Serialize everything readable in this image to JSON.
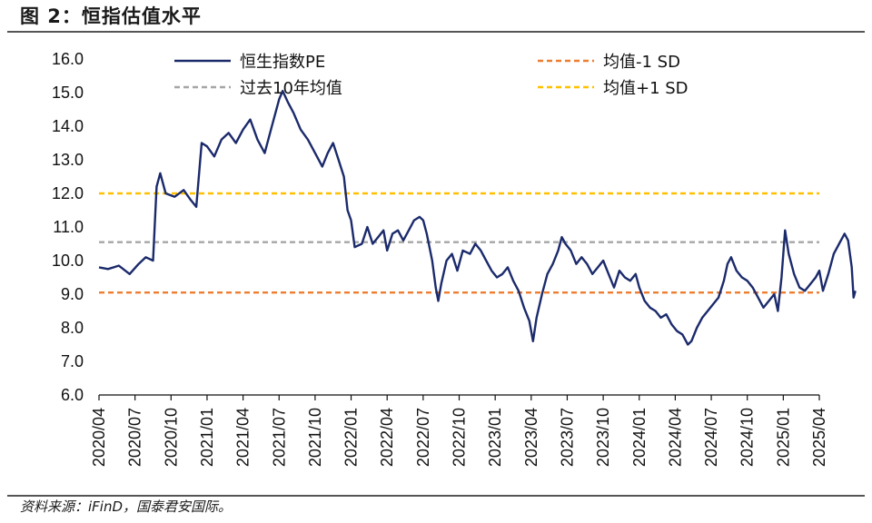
{
  "header": {
    "title": "图 2：恒指估值水平"
  },
  "footer": {
    "source": "资料来源：iFinD，国泰君安国际。"
  },
  "chart_data": {
    "type": "line",
    "title": "图 2：恒指估值水平",
    "xlabel": "",
    "ylabel": "",
    "ylim": [
      6.0,
      16.0
    ],
    "yticks": [
      "16.0",
      "15.0",
      "14.0",
      "13.0",
      "12.0",
      "11.0",
      "10.0",
      "9.0",
      "8.0",
      "7.0",
      "6.0"
    ],
    "xticks": [
      "2020/04",
      "2020/07",
      "2020/10",
      "2021/01",
      "2021/04",
      "2021/07",
      "2021/10",
      "2022/01",
      "2022/04",
      "2022/07",
      "2022/10",
      "2023/01",
      "2023/04",
      "2023/07",
      "2023/10",
      "2024/01",
      "2024/04",
      "2024/07",
      "2024/10",
      "2025/01",
      "2025/04"
    ],
    "grid": false,
    "legend": [
      {
        "name": "恒生指数PE",
        "style": "solid",
        "color": "#1b2a6b"
      },
      {
        "name": "均值-1 SD",
        "style": "dashed",
        "color": "#ee7d31"
      },
      {
        "name": "过去10年均值",
        "style": "dashed",
        "color": "#a6a6a6"
      },
      {
        "name": "均值+1 SD",
        "style": "dashed",
        "color": "#ffc000"
      }
    ],
    "reference_lines": {
      "mean_minus_1sd": 9.05,
      "mean_10y": 10.55,
      "mean_plus_1sd": 12.0
    },
    "series": [
      {
        "name": "恒生指数PE",
        "color": "#1b2a6b",
        "points": [
          [
            0.0,
            9.8
          ],
          [
            0.25,
            9.75
          ],
          [
            0.55,
            9.85
          ],
          [
            0.85,
            9.6
          ],
          [
            1.1,
            9.9
          ],
          [
            1.3,
            10.1
          ],
          [
            1.5,
            10.0
          ],
          [
            1.6,
            12.2
          ],
          [
            1.7,
            12.6
          ],
          [
            1.85,
            12.0
          ],
          [
            2.1,
            11.9
          ],
          [
            2.35,
            12.1
          ],
          [
            2.55,
            11.8
          ],
          [
            2.7,
            11.6
          ],
          [
            2.85,
            13.5
          ],
          [
            3.0,
            13.4
          ],
          [
            3.2,
            13.1
          ],
          [
            3.4,
            13.6
          ],
          [
            3.6,
            13.8
          ],
          [
            3.8,
            13.5
          ],
          [
            4.0,
            13.9
          ],
          [
            4.2,
            14.2
          ],
          [
            4.4,
            13.6
          ],
          [
            4.6,
            13.2
          ],
          [
            4.8,
            14.0
          ],
          [
            5.0,
            14.8
          ],
          [
            5.1,
            15.05
          ],
          [
            5.25,
            14.7
          ],
          [
            5.4,
            14.4
          ],
          [
            5.6,
            13.9
          ],
          [
            5.8,
            13.6
          ],
          [
            6.0,
            13.2
          ],
          [
            6.2,
            12.8
          ],
          [
            6.35,
            13.2
          ],
          [
            6.5,
            13.5
          ],
          [
            6.65,
            13.0
          ],
          [
            6.8,
            12.5
          ],
          [
            6.9,
            11.5
          ],
          [
            7.0,
            11.2
          ],
          [
            7.1,
            10.4
          ],
          [
            7.3,
            10.5
          ],
          [
            7.45,
            11.0
          ],
          [
            7.6,
            10.5
          ],
          [
            7.75,
            10.7
          ],
          [
            7.9,
            10.9
          ],
          [
            8.0,
            10.3
          ],
          [
            8.15,
            10.8
          ],
          [
            8.3,
            10.9
          ],
          [
            8.45,
            10.6
          ],
          [
            8.6,
            10.9
          ],
          [
            8.75,
            11.2
          ],
          [
            8.9,
            11.3
          ],
          [
            9.0,
            11.2
          ],
          [
            9.1,
            10.8
          ],
          [
            9.25,
            10.0
          ],
          [
            9.35,
            9.2
          ],
          [
            9.42,
            8.8
          ],
          [
            9.5,
            9.3
          ],
          [
            9.65,
            10.0
          ],
          [
            9.8,
            10.2
          ],
          [
            9.95,
            9.7
          ],
          [
            10.1,
            10.3
          ],
          [
            10.3,
            10.2
          ],
          [
            10.45,
            10.5
          ],
          [
            10.6,
            10.3
          ],
          [
            10.75,
            10.0
          ],
          [
            10.9,
            9.7
          ],
          [
            11.05,
            9.5
          ],
          [
            11.2,
            9.6
          ],
          [
            11.35,
            9.8
          ],
          [
            11.5,
            9.4
          ],
          [
            11.65,
            9.1
          ],
          [
            11.8,
            8.6
          ],
          [
            11.95,
            8.2
          ],
          [
            12.05,
            7.6
          ],
          [
            12.15,
            8.3
          ],
          [
            12.3,
            9.0
          ],
          [
            12.45,
            9.6
          ],
          [
            12.6,
            9.9
          ],
          [
            12.75,
            10.3
          ],
          [
            12.85,
            10.7
          ],
          [
            12.95,
            10.5
          ],
          [
            13.1,
            10.3
          ],
          [
            13.25,
            9.9
          ],
          [
            13.4,
            10.1
          ],
          [
            13.55,
            9.9
          ],
          [
            13.7,
            9.6
          ],
          [
            13.85,
            9.8
          ],
          [
            14.0,
            10.0
          ],
          [
            14.15,
            9.6
          ],
          [
            14.3,
            9.2
          ],
          [
            14.45,
            9.7
          ],
          [
            14.6,
            9.5
          ],
          [
            14.75,
            9.4
          ],
          [
            14.9,
            9.6
          ],
          [
            15.0,
            9.2
          ],
          [
            15.15,
            8.8
          ],
          [
            15.3,
            8.6
          ],
          [
            15.45,
            8.5
          ],
          [
            15.6,
            8.3
          ],
          [
            15.75,
            8.4
          ],
          [
            15.9,
            8.1
          ],
          [
            16.05,
            7.9
          ],
          [
            16.2,
            7.8
          ],
          [
            16.35,
            7.5
          ],
          [
            16.45,
            7.6
          ],
          [
            16.6,
            8.0
          ],
          [
            16.75,
            8.3
          ],
          [
            16.9,
            8.5
          ],
          [
            17.05,
            8.7
          ],
          [
            17.2,
            8.9
          ],
          [
            17.35,
            9.4
          ],
          [
            17.45,
            9.9
          ],
          [
            17.55,
            10.1
          ],
          [
            17.7,
            9.7
          ],
          [
            17.85,
            9.5
          ],
          [
            18.0,
            9.4
          ],
          [
            18.15,
            9.2
          ],
          [
            18.3,
            8.9
          ],
          [
            18.45,
            8.6
          ],
          [
            18.6,
            8.8
          ],
          [
            18.75,
            9.0
          ],
          [
            18.85,
            8.5
          ],
          [
            18.95,
            9.5
          ],
          [
            19.05,
            10.9
          ],
          [
            19.15,
            10.2
          ],
          [
            19.3,
            9.6
          ],
          [
            19.45,
            9.2
          ],
          [
            19.6,
            9.1
          ],
          [
            19.75,
            9.3
          ],
          [
            19.9,
            9.5
          ],
          [
            20.0,
            9.7
          ],
          [
            20.1,
            9.1
          ],
          [
            20.25,
            9.6
          ],
          [
            20.4,
            10.2
          ],
          [
            20.55,
            10.5
          ],
          [
            20.7,
            10.8
          ],
          [
            20.8,
            10.6
          ],
          [
            20.9,
            9.8
          ],
          [
            20.95,
            8.9
          ],
          [
            21.0,
            9.1
          ]
        ]
      }
    ]
  }
}
